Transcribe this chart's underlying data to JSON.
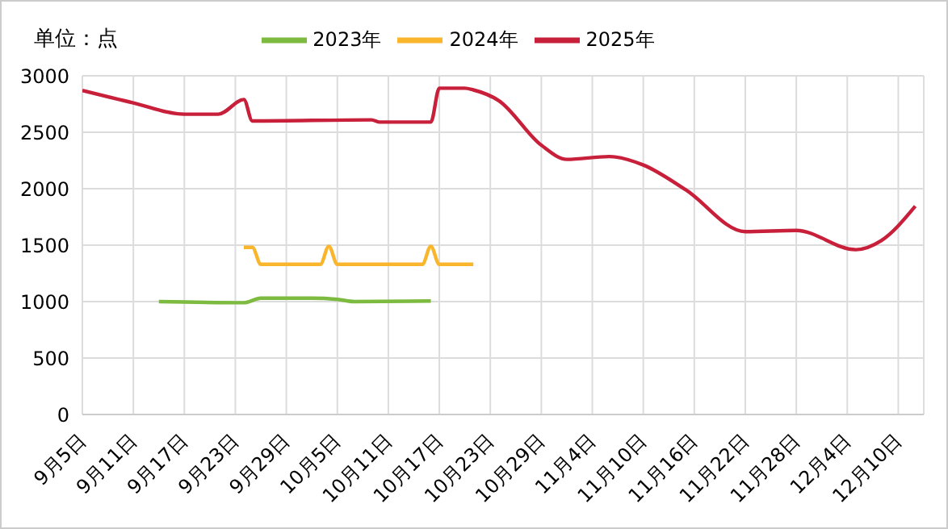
{
  "chart_data": {
    "type": "line",
    "ylabel": "单位：点",
    "legend": "top",
    "grid": true,
    "marker": "none",
    "line_style": "solid",
    "xlim": [
      "--09-05",
      "--12-13"
    ],
    "xticks": [
      {
        "value": "--09-05",
        "label": "9月5日"
      },
      {
        "value": "--09-11",
        "label": "9月11日"
      },
      {
        "value": "--09-17",
        "label": "9月17日"
      },
      {
        "value": "--09-23",
        "label": "9月23日"
      },
      {
        "value": "--09-29",
        "label": "9月29日"
      },
      {
        "value": "--10-05",
        "label": "10月5日"
      },
      {
        "value": "--10-11",
        "label": "10月11日"
      },
      {
        "value": "--10-17",
        "label": "10月17日"
      },
      {
        "value": "--10-23",
        "label": "10月23日"
      },
      {
        "value": "--10-29",
        "label": "10月29日"
      },
      {
        "value": "--11-04",
        "label": "11月4日"
      },
      {
        "value": "--11-10",
        "label": "11月10日"
      },
      {
        "value": "--11-16",
        "label": "11月16日"
      },
      {
        "value": "--11-22",
        "label": "11月22日"
      },
      {
        "value": "--11-28",
        "label": "11月28日"
      },
      {
        "value": "--12-04",
        "label": "12月4日"
      },
      {
        "value": "--12-10",
        "label": "12月10日"
      }
    ],
    "ylim": [
      0,
      3000
    ],
    "yticks": [
      0,
      500,
      1000,
      1500,
      2000,
      2500,
      3000
    ],
    "series": [
      {
        "name": "2023年",
        "color": "#7cbb3f",
        "x": [
          "--09-14",
          "--09-24",
          "--09-26",
          "--10-02",
          "--10-05",
          "--10-07",
          "--10-16"
        ],
        "values": [
          1000,
          990,
          1030,
          1030,
          1020,
          1000,
          1005
        ]
      },
      {
        "name": "2024年",
        "color": "#f9b62c",
        "x": [
          "--09-24",
          "--09-25",
          "--09-26",
          "--10-03",
          "--10-04",
          "--10-05",
          "--10-15",
          "--10-16",
          "--10-17",
          "--10-21"
        ],
        "values": [
          1480,
          1480,
          1330,
          1330,
          1490,
          1330,
          1330,
          1490,
          1330,
          1330
        ]
      },
      {
        "name": "2025年",
        "color": "#c8203a",
        "x": [
          "--09-05",
          "--09-11",
          "--09-17",
          "--09-21",
          "--09-24",
          "--09-25",
          "--10-09",
          "--10-10",
          "--10-16",
          "--10-17",
          "--10-20",
          "--10-21",
          "--10-24",
          "--10-29",
          "--11-01",
          "--11-06",
          "--11-10",
          "--11-15",
          "--11-22",
          "--11-28",
          "--12-05",
          "--12-08",
          "--12-12"
        ],
        "values": [
          2870,
          2760,
          2660,
          2660,
          2790,
          2600,
          2610,
          2590,
          2590,
          2890,
          2890,
          2875,
          2780,
          2385,
          2260,
          2285,
          2210,
          1990,
          1620,
          1630,
          1460,
          1540,
          1845
        ]
      }
    ]
  }
}
